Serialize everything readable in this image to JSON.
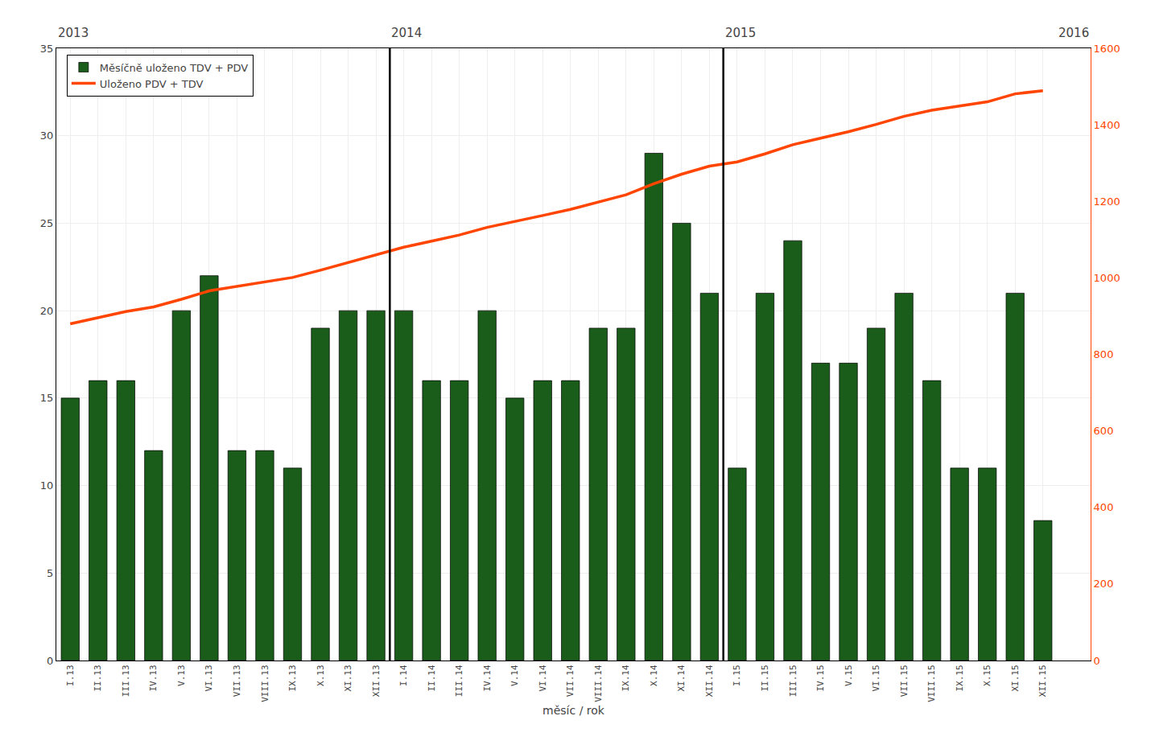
{
  "chart_data": {
    "type": "bar",
    "categories": [
      "I.13",
      "II.13",
      "III.13",
      "IV.13",
      "V.13",
      "VI.13",
      "VII.13",
      "VIII.13",
      "IX.13",
      "X.13",
      "XI.13",
      "XII.13",
      "I.14",
      "II.14",
      "III.14",
      "IV.14",
      "V.14",
      "VI.14",
      "VII.14",
      "VIII.14",
      "IX.14",
      "X.14",
      "XI.14",
      "XII.14",
      "I.15",
      "II.15",
      "III.15",
      "IV.15",
      "V.15",
      "VI.15",
      "VII.15",
      "VIII.15",
      "IX.15",
      "X.15",
      "XI.15",
      "XII.15"
    ],
    "series": [
      {
        "name": "Měsíčně uloženo TDV + PDV",
        "type": "bar",
        "color": "#1a5c1a",
        "values": [
          15,
          16,
          16,
          12,
          20,
          22,
          12,
          12,
          11,
          19,
          20,
          20,
          20,
          16,
          16,
          20,
          15,
          16,
          16,
          19,
          19,
          29,
          25,
          21,
          11,
          21,
          24,
          17,
          17,
          19,
          21,
          16,
          11,
          11,
          21,
          8
        ]
      },
      {
        "name": "Uloženo PDV + TDV",
        "type": "line",
        "axis": "y2",
        "color": "#ff4500",
        "values": [
          880,
          896,
          912,
          924,
          944,
          966,
          978,
          990,
          1001,
          1020,
          1040,
          1060,
          1080,
          1096,
          1112,
          1132,
          1147,
          1163,
          1179,
          1198,
          1217,
          1246,
          1271,
          1292,
          1303,
          1324,
          1348,
          1365,
          1382,
          1401,
          1422,
          1438,
          1449,
          1460,
          1481,
          1489
        ]
      }
    ],
    "xlabel": "měsíc / rok",
    "annotations": [
      "2013",
      "2014",
      "2015",
      "2016"
    ],
    "ylim": [
      0,
      35
    ],
    "yticks": [
      0,
      5,
      10,
      15,
      20,
      25,
      30,
      35
    ],
    "y2lim": [
      0,
      1600
    ],
    "y2ticks": [
      0,
      200,
      400,
      600,
      800,
      1000,
      1200,
      1400,
      1600
    ],
    "grid": true,
    "legend": "upper left"
  }
}
